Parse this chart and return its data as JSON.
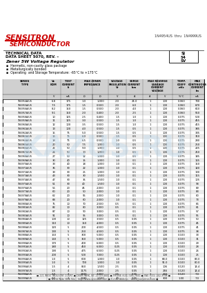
{
  "title_company": "SENSITRON",
  "title_company2": "SEMICONDUCTOR",
  "title_right": "1N4954US  thru  1N4999US",
  "tech_data": "TECHNICAL DATA",
  "data_sheet": "DATA SHEET 5070, REV. –",
  "zener_title": "Zener 5W Voltage Regulator",
  "bullets": [
    "Hermetic, non-cavity glass package",
    "Metallurgically bonded",
    "Operating  and Storage Temperature: -65°C to +175°C"
  ],
  "package_types": [
    "SJ",
    "S4",
    "SV"
  ],
  "rows": [
    [
      "1N4954A/US",
      "6.8",
      "175",
      "1.0",
      "1,000",
      "2.0",
      "24.0",
      "1",
      "100",
      "0.060",
      "730"
    ],
    [
      "1N4955A/US",
      "7.5",
      "175",
      "1.5",
      "0,500",
      "2.0",
      "6.0",
      "1",
      "100",
      "0.060",
      "670"
    ],
    [
      "1N4956A/US",
      "8.2",
      "150",
      "1.5",
      "0,500",
      "2.0",
      "4.0",
      "1",
      "100",
      "0.060",
      "610"
    ],
    [
      "1N4957A/US",
      "9.1",
      "150",
      "2.0",
      "0,400",
      "2.0",
      "2.5",
      "1",
      "100",
      "0.060",
      "550"
    ],
    [
      "1N4958A/US",
      "10",
      "125",
      "2.5",
      "0,400",
      "1.5",
      "1.0",
      "1",
      "100",
      "0.075",
      "500"
    ],
    [
      "1N4959A/US",
      "11",
      "125",
      "3.0",
      "0,500",
      "1.5",
      "1.0",
      "1",
      "100",
      "0.075",
      "455"
    ],
    [
      "1N4960A/US",
      "12",
      "100",
      "3.5",
      "0,500",
      "1.5",
      "1.0",
      "1",
      "100",
      "0.075",
      "415"
    ],
    [
      "1N4961A/US",
      "13",
      "100",
      "4.0",
      "0,500",
      "1.5",
      "0.5",
      "1",
      "100",
      "0.075",
      "385"
    ],
    [
      "1N4962A/US",
      "15",
      "75",
      "5.0",
      "0,500",
      "1.5",
      "0.5",
      "1",
      "100",
      "0.075",
      "335"
    ],
    [
      "1N4963A/US",
      "16",
      "75",
      "6.0",
      "0,500",
      "1.5",
      "0.5",
      "1",
      "100",
      "0.075",
      "310"
    ],
    [
      "1N4964A/US",
      "18",
      "75",
      "6.5",
      "0,500",
      "1.0",
      "0.5",
      "1",
      "100",
      "0.075",
      "280"
    ],
    [
      "1N4965A/US",
      "20",
      "50",
      "7.5",
      "1,000",
      "1.0",
      "0.5",
      "1",
      "100",
      "0.075",
      "250"
    ],
    [
      "1N4966A/US",
      "22",
      "50",
      "9.0",
      "1,000",
      "1.0",
      "0.5",
      "1",
      "100",
      "0.075",
      "225"
    ],
    [
      "1N4967A/US",
      "24",
      "50",
      "10",
      "1,000",
      "1.0",
      "0.5",
      "1",
      "100",
      "0.075",
      "210"
    ],
    [
      "1N4968A/US",
      "27",
      "50",
      "12",
      "1,000",
      "1.0",
      "0.5",
      "1",
      "100",
      "0.075",
      "185"
    ],
    [
      "1N4969A/US",
      "30",
      "40",
      "15",
      "1,000",
      "1.0",
      "0.1",
      "1",
      "100",
      "0.075",
      "165"
    ],
    [
      "1N4970A/US",
      "33",
      "40",
      "18",
      "1,000",
      "1.0",
      "0.1",
      "1",
      "100",
      "0.075",
      "150"
    ],
    [
      "1N4971A/US",
      "36",
      "30",
      "22",
      "1,000",
      "1.0",
      "0.1",
      "1",
      "100",
      "0.075",
      "140"
    ],
    [
      "1N4972A/US",
      "39",
      "30",
      "25",
      "1,000",
      "1.0",
      "0.1",
      "1",
      "100",
      "0.075",
      "130"
    ],
    [
      "1N4973A/US",
      "43",
      "30",
      "30",
      "1,500",
      "1.0",
      "0.1",
      "1",
      "100",
      "0.075",
      "115"
    ],
    [
      "1N4974A/US",
      "47",
      "30",
      "35",
      "1,500",
      "1.0",
      "0.1",
      "1",
      "100",
      "0.075",
      "105"
    ],
    [
      "1N4975A/US",
      "51",
      "30",
      "40",
      "1,500",
      "1.0",
      "0.1",
      "1",
      "100",
      "0.075",
      "98"
    ],
    [
      "1N4976A/US",
      "56",
      "20",
      "45",
      "2,000",
      "1.0",
      "0.1",
      "1",
      "100",
      "0.075",
      "89"
    ],
    [
      "1N4977A/US",
      "60",
      "20",
      "50",
      "2,000",
      "1.0",
      "0.1",
      "1",
      "100",
      "0.075",
      "83"
    ],
    [
      "1N4978A/US",
      "62",
      "20",
      "55",
      "2,000",
      "1.0",
      "0.1",
      "1",
      "100",
      "0.075",
      "80"
    ],
    [
      "1N4979A/US",
      "68",
      "20",
      "60",
      "2,000",
      "1.0",
      "0.1",
      "1",
      "100",
      "0.075",
      "73"
    ],
    [
      "1N4980A/US",
      "75",
      "10",
      "70",
      "2,500",
      "0.5",
      "0.1",
      "1",
      "100",
      "0.075",
      "66"
    ],
    [
      "1N4981A/US",
      "82",
      "10",
      "80",
      "3,000",
      "0.5",
      "0.1",
      "1",
      "100",
      "0.075",
      "61"
    ],
    [
      "1N4982A/US",
      "87",
      "10",
      "90",
      "3,000",
      "0.5",
      "0.1",
      "1",
      "100",
      "0.075",
      "57"
    ],
    [
      "1N4983A/US",
      "91",
      "10",
      "95",
      "3,000",
      "0.5",
      "0.1",
      "1",
      "100",
      "0.075",
      "55"
    ],
    [
      "1N4984A/US",
      "100",
      "10",
      "125",
      "3,500",
      "0.5",
      "0.05",
      "1",
      "100",
      "0.075",
      "50"
    ],
    [
      "1N4985A/US",
      "110",
      "10",
      "150",
      "4,000",
      "0.5",
      "0.05",
      "1",
      "100",
      "0.075",
      "45"
    ],
    [
      "1N4986A/US",
      "120",
      "5",
      "200",
      "4,500",
      "0.5",
      "0.05",
      "1",
      "100",
      "0.075",
      "41"
    ],
    [
      "1N4987A/US",
      "130",
      "5",
      "250",
      "4,500",
      "0.5",
      "0.05",
      "1",
      "100",
      "0.075",
      "38"
    ],
    [
      "1N4988A/US",
      "150",
      "5",
      "300",
      "5,000",
      "0.5",
      "0.05",
      "1",
      "100",
      "0.100",
      "33"
    ],
    [
      "1N4989A/US",
      "160",
      "5",
      "350",
      "5,000",
      "0.5",
      "0.05",
      "1",
      "100",
      "0.100",
      "31"
    ],
    [
      "1N4990A/US",
      "170",
      "5",
      "400",
      "6,000",
      "0.5",
      "0.05",
      "1",
      "100",
      "0.100",
      "29"
    ],
    [
      "1N4991A/US",
      "180",
      "5",
      "450",
      "6,000",
      "0.25",
      "0.05",
      "1",
      "100",
      "0.100",
      "28"
    ],
    [
      "1N4992A/US",
      "190",
      "5",
      "475",
      "6,500",
      "0.25",
      "0.05",
      "1",
      "100",
      "0.100",
      "26"
    ],
    [
      "1N4993A/US",
      "200",
      "5",
      "500",
      "7,000",
      "0.25",
      "0.05",
      "1",
      "100",
      "0.100",
      "25"
    ],
    [
      "1N4994A/US",
      "1.0",
      "5",
      "600",
      "1,000",
      "1.0",
      "0.05",
      "1",
      "68.0",
      "0.100",
      "83.0"
    ],
    [
      "1N4995A/US",
      "1.0",
      "5",
      "700",
      "1,000",
      "1.0",
      "0.05",
      "1",
      "91.0",
      "0.100",
      "80.0"
    ],
    [
      "1N4996A/US",
      "1.5",
      "4",
      "850",
      "1,500",
      "2.5",
      "0.05",
      "1",
      "106",
      "0.120",
      "14.4"
    ],
    [
      "1N4997A/US",
      "1.5",
      "4",
      "1175",
      "2,000",
      "2.5",
      "0.05",
      "1",
      "246",
      "0.120",
      "14.4"
    ],
    [
      "1N4998A/US",
      "2.0",
      "3",
      "1400",
      "3,000",
      "2.5",
      "0.05",
      "1",
      "294",
      "0.120",
      "7.0"
    ],
    [
      "1N4999A/US",
      "3.0",
      "3",
      "1500",
      "1,500",
      "40",
      "0.05",
      "1",
      "300",
      "1.00",
      "7.0"
    ]
  ],
  "footer_line1": "■ 221 WEST INDUSTRY COURT ■ DEER PARK, NY 11729-4681 ■ PHONE (631) 586-7600 ■ FAX (631) 242-9798 ■",
  "footer_line2": "■ World Wide Web Site : http://www.sensitron.com ■ E-mail Address : sales@sensitron.com ■",
  "bg_color": "#ffffff",
  "red_color": "#cc0000"
}
